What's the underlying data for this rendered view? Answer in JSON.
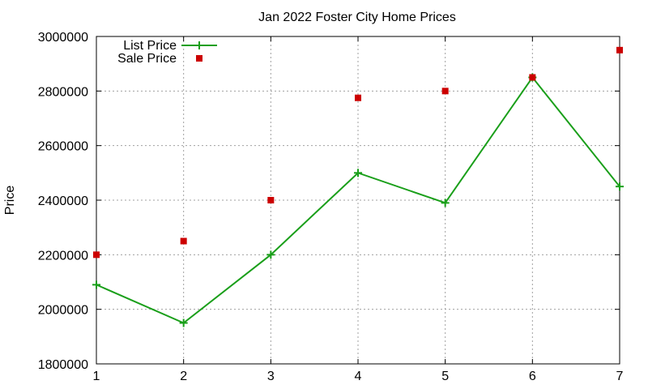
{
  "chart_data": {
    "type": "line",
    "title": "Jan 2022 Foster City Home Prices",
    "xlabel": "",
    "ylabel": "Price",
    "xlim": [
      1,
      7
    ],
    "ylim": [
      1800000,
      3000000
    ],
    "x": [
      1,
      2,
      3,
      4,
      5,
      6,
      7
    ],
    "xticks": [
      1,
      2,
      3,
      4,
      5,
      6,
      7
    ],
    "yticks": [
      1800000,
      2000000,
      2200000,
      2400000,
      2600000,
      2800000,
      3000000
    ],
    "grid": true,
    "legend_position": "top-left",
    "series": [
      {
        "name": "List Price",
        "style": "line-points",
        "marker": "plus",
        "color": "#1a9f1a",
        "values": [
          2090000,
          1950000,
          2200000,
          2500000,
          2390000,
          2850000,
          2450000
        ]
      },
      {
        "name": "Sale Price",
        "style": "points",
        "marker": "square",
        "color": "#cc0000",
        "values": [
          2200000,
          2250000,
          2400000,
          2775000,
          2800000,
          2850000,
          2950000
        ]
      }
    ]
  }
}
